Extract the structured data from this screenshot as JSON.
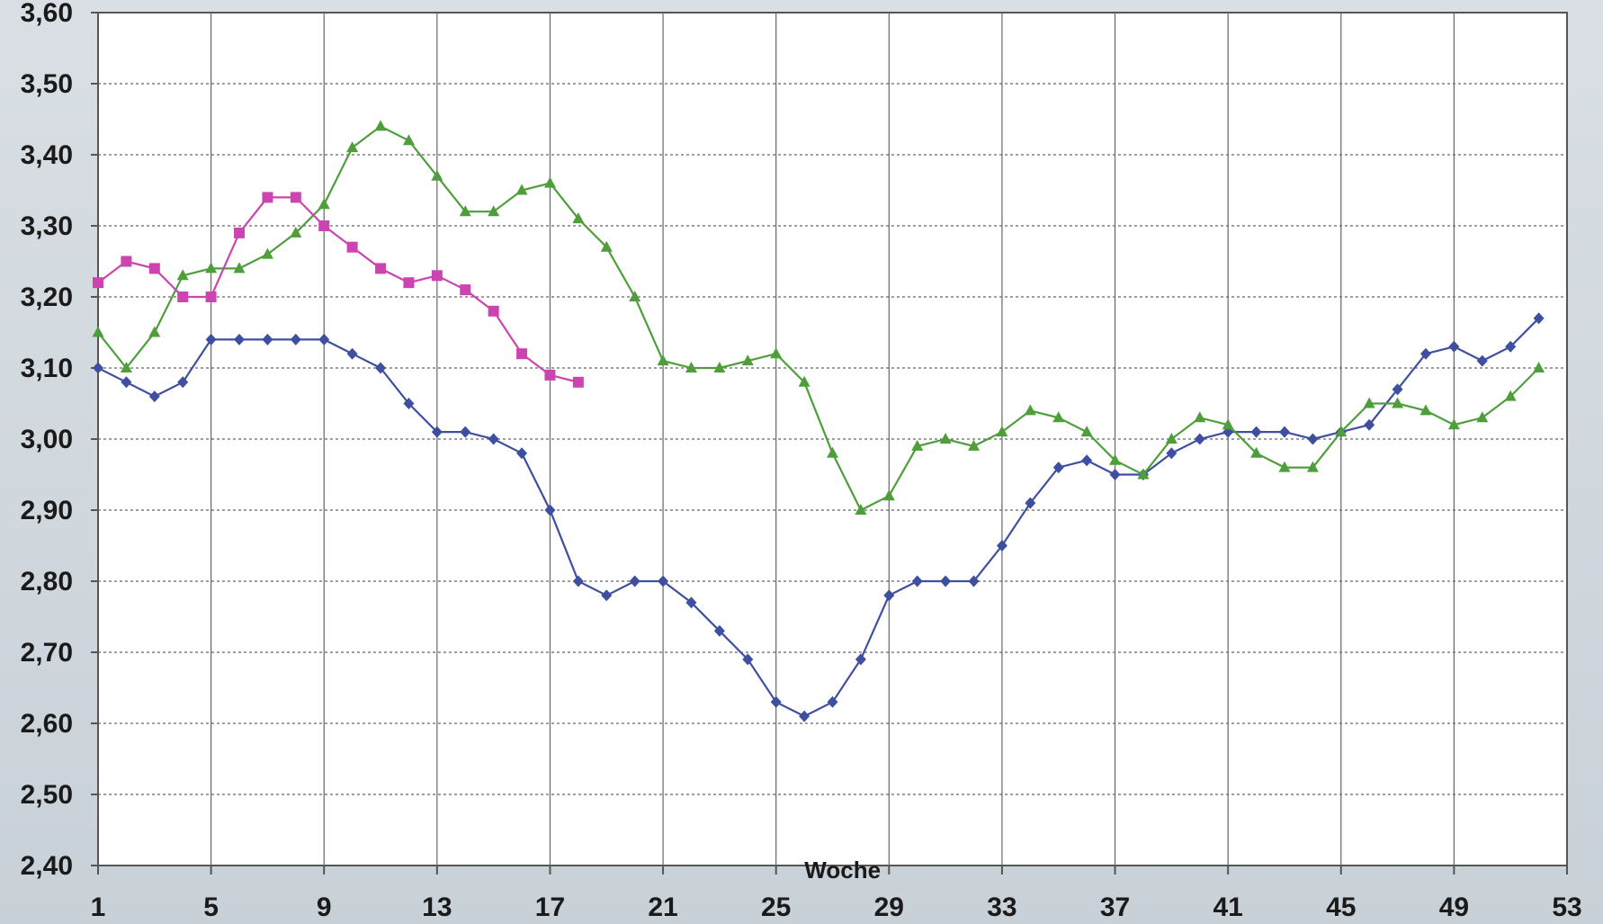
{
  "chart_data": {
    "type": "line",
    "title": "",
    "xlabel": "Woche",
    "ylabel": "",
    "xlim": [
      1,
      53
    ],
    "ylim": [
      2.4,
      3.6
    ],
    "x_ticks": [
      1,
      5,
      9,
      13,
      17,
      21,
      25,
      29,
      33,
      37,
      41,
      45,
      49,
      53
    ],
    "y_ticks": [
      "2,40",
      "2,50",
      "2,60",
      "2,70",
      "2,80",
      "2,90",
      "3,00",
      "3,10",
      "3,20",
      "3,30",
      "3,40",
      "3,50",
      "3,60"
    ],
    "grid": true,
    "legend": "none",
    "series": [
      {
        "color": "#3f4fa0",
        "marker": "diamond",
        "x": [
          1,
          2,
          3,
          4,
          5,
          6,
          7,
          8,
          9,
          10,
          11,
          12,
          13,
          14,
          15,
          16,
          17,
          18,
          19,
          20,
          21,
          22,
          23,
          24,
          25,
          26,
          27,
          28,
          29,
          30,
          31,
          32,
          33,
          34,
          35,
          36,
          37,
          38,
          39,
          40,
          41,
          42,
          43,
          44,
          45,
          46,
          47,
          48,
          49,
          50,
          51,
          52
        ],
        "values": [
          3.1,
          3.08,
          3.06,
          3.08,
          3.14,
          3.14,
          3.14,
          3.14,
          3.14,
          3.12,
          3.1,
          3.05,
          3.01,
          3.01,
          3.0,
          2.98,
          2.9,
          2.8,
          2.78,
          2.8,
          2.8,
          2.77,
          2.73,
          2.69,
          2.63,
          2.61,
          2.63,
          2.69,
          2.78,
          2.8,
          2.8,
          2.8,
          2.85,
          2.91,
          2.96,
          2.97,
          2.95,
          2.95,
          2.98,
          3.0,
          3.01,
          3.01,
          3.01,
          3.0,
          3.01,
          3.02,
          3.07,
          3.12,
          3.13,
          3.11,
          3.13,
          3.17
        ]
      },
      {
        "color": "#4e9e3c",
        "marker": "triangle",
        "x": [
          1,
          2,
          3,
          4,
          5,
          6,
          7,
          8,
          9,
          10,
          11,
          12,
          13,
          14,
          15,
          16,
          17,
          18,
          19,
          20,
          21,
          22,
          23,
          24,
          25,
          26,
          27,
          28,
          29,
          30,
          31,
          32,
          33,
          34,
          35,
          36,
          37,
          38,
          39,
          40,
          41,
          42,
          43,
          44,
          45,
          46,
          47,
          48,
          49,
          50,
          51,
          52
        ],
        "values": [
          3.15,
          3.1,
          3.15,
          3.23,
          3.24,
          3.24,
          3.26,
          3.29,
          3.33,
          3.41,
          3.44,
          3.42,
          3.37,
          3.32,
          3.32,
          3.35,
          3.36,
          3.31,
          3.27,
          3.2,
          3.11,
          3.1,
          3.1,
          3.11,
          3.12,
          3.08,
          2.98,
          2.9,
          2.92,
          2.99,
          3.0,
          2.99,
          3.01,
          3.04,
          3.03,
          3.01,
          2.97,
          2.95,
          3.0,
          3.03,
          3.02,
          2.98,
          2.96,
          2.96,
          3.01,
          3.05,
          3.05,
          3.04,
          3.02,
          3.03,
          3.06,
          3.1
        ]
      },
      {
        "color": "#cc44b0",
        "marker": "square",
        "x": [
          1,
          2,
          3,
          4,
          5,
          6,
          7,
          8,
          9,
          10,
          11,
          12,
          13,
          14,
          15,
          16,
          17,
          18
        ],
        "values": [
          3.22,
          3.25,
          3.24,
          3.2,
          3.2,
          3.29,
          3.34,
          3.34,
          3.3,
          3.27,
          3.24,
          3.22,
          3.23,
          3.21,
          3.18,
          3.12,
          3.09,
          3.08
        ]
      }
    ]
  }
}
